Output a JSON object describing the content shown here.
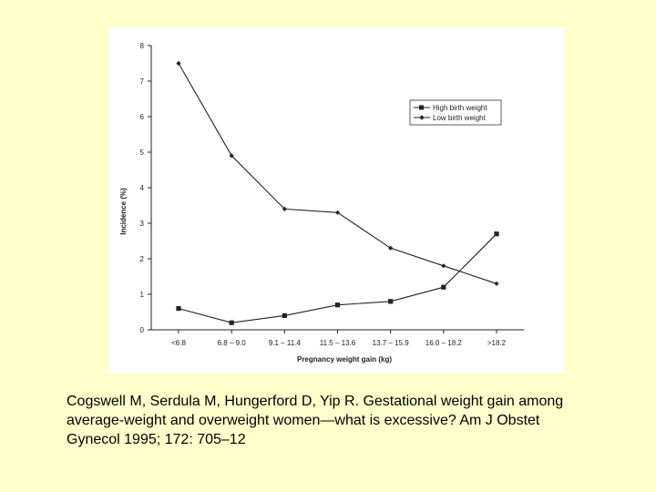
{
  "chart_data": {
    "type": "line",
    "categories": [
      "<6.8",
      "6.8 – 9.0",
      "9.1 – 11.4",
      "11.5 – 13.6",
      "13.7 – 15.9",
      "16.0 – 18.2",
      ">18.2"
    ],
    "series": [
      {
        "name": "High birth weight",
        "marker": "square",
        "values": [
          0.6,
          0.2,
          0.4,
          0.7,
          0.8,
          1.2,
          2.7
        ]
      },
      {
        "name": "Low birth weight",
        "marker": "diamond",
        "values": [
          7.5,
          4.9,
          3.4,
          3.3,
          2.3,
          1.8,
          1.3
        ]
      }
    ],
    "title": "",
    "xlabel": "Pregnancy weight gain (kg)",
    "ylabel": "Incidence (%)",
    "ylim": [
      0,
      8
    ],
    "yticks": [
      "0",
      "1",
      "2",
      "3",
      "4",
      "5",
      "6",
      "7",
      "8"
    ],
    "grid": false,
    "legend_position": "top-right"
  },
  "caption": "Cogswell M, Serdula M, Hungerford D, Yip R. Gestational weight gain among average-weight and overweight women—what is excessive? Am J Obstet Gynecol 1995; 172: 705–12",
  "colors": {
    "background": "#ffffcc",
    "panel": "#ffffff",
    "ink": "#222222"
  }
}
